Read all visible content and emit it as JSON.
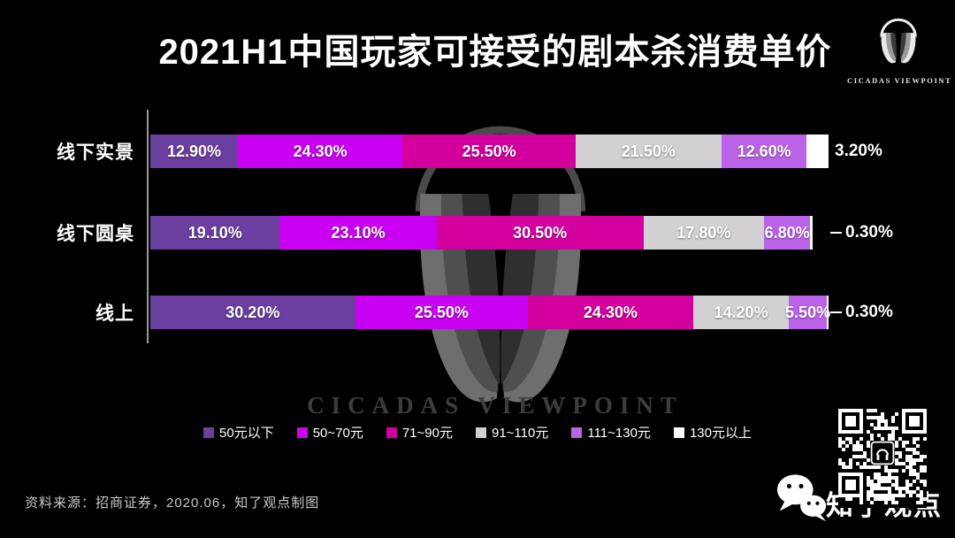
{
  "title": "2021H1中国玩家可接受的剧本杀消费单价",
  "chart_data": {
    "type": "bar",
    "variant": "horizontal-stacked",
    "categories": [
      "线下实景",
      "线下圆桌",
      "线上"
    ],
    "series": [
      {
        "name": "50元以下",
        "color": "#6b3fa0",
        "values": [
          12.9,
          19.1,
          30.2
        ]
      },
      {
        "name": "50~70元",
        "color": "#c900f2",
        "values": [
          24.3,
          23.1,
          25.5
        ]
      },
      {
        "name": "71~90元",
        "color": "#d4009e",
        "values": [
          25.5,
          30.5,
          24.3
        ]
      },
      {
        "name": "91~110元",
        "color": "#d2d0d2",
        "values": [
          21.5,
          17.8,
          14.2
        ]
      },
      {
        "name": "111~130元",
        "color": "#ba63e8",
        "values": [
          12.6,
          6.8,
          5.5
        ]
      },
      {
        "name": "130元以上",
        "color": "#ffffff",
        "values": [
          3.2,
          0.3,
          0.3
        ]
      }
    ],
    "value_format": "0.00%",
    "xlim": [
      0,
      100
    ],
    "grid": false,
    "legend_position": "bottom",
    "background": "#000000"
  },
  "source_note": "资料来源：招商证券，2020.06，知了观点制图",
  "branding": {
    "logo_caption": "CICADAS VIEWPOINT",
    "watermark_text": "CICADAS VIEWPOINT",
    "wechat_account": "知了观点"
  }
}
